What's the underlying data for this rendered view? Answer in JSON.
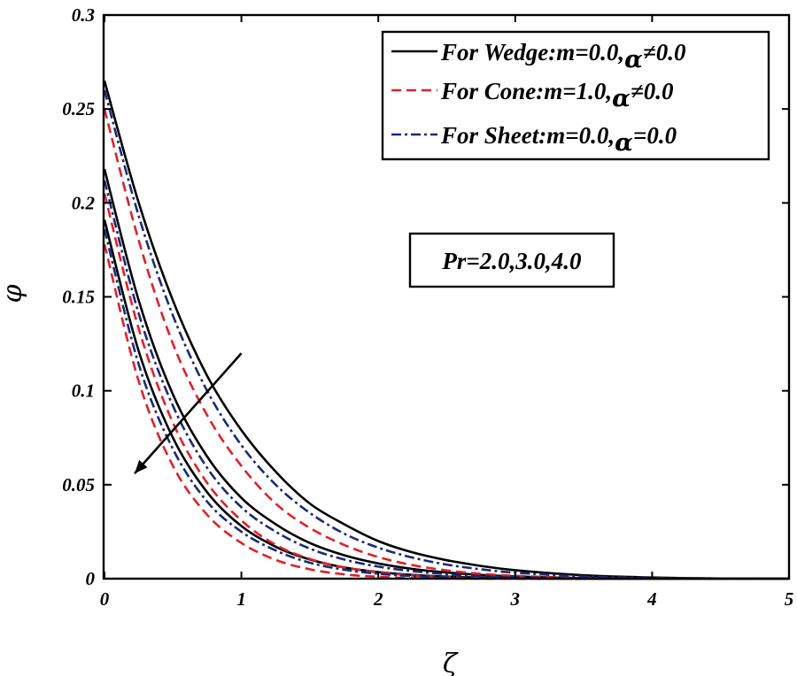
{
  "chart_data": {
    "type": "line",
    "title": "",
    "xlabel": "ζ",
    "ylabel": "φ",
    "xlim": [
      0,
      5
    ],
    "ylim": [
      0,
      0.3
    ],
    "xticks": [
      0,
      1,
      2,
      3,
      4,
      5
    ],
    "xtick_labels": [
      "0",
      "1",
      "2",
      "3",
      "4",
      "5"
    ],
    "yticks": [
      0,
      0.05,
      0.1,
      0.15,
      0.2,
      0.25,
      0.3
    ],
    "ytick_labels": [
      "0",
      "0.05",
      "0.1",
      "0.15",
      "0.2",
      "0.25",
      "0.3"
    ],
    "grid": false,
    "legend_position": "top-right",
    "legend": [
      {
        "key": "wedge",
        "prefix": "For Wedge:m=0.0,",
        "alpha": "α",
        "suffix": "≠0.0",
        "color": "#000000",
        "dash": "solid"
      },
      {
        "key": "cone",
        "prefix": "For Cone:m=1.0,",
        "alpha": "α",
        "suffix": "≠0.0",
        "color": "#e0202a",
        "dash": "dashed"
      },
      {
        "key": "sheet",
        "prefix": "For Sheet:m=0.0,",
        "alpha": "α",
        "suffix": "=0.0",
        "color": "#1a2a78",
        "dash": "dashdot"
      }
    ],
    "annotation": "Pr=2.0,3.0,4.0",
    "arrow": {
      "from": [
        1.0,
        0.12
      ],
      "to": [
        0.22,
        0.056
      ]
    },
    "x": [
      0,
      0.25,
      0.5,
      0.75,
      1,
      1.25,
      1.5,
      1.75,
      2,
      2.25,
      2.5,
      2.75,
      3,
      3.5,
      4,
      4.5,
      5
    ],
    "series": [
      {
        "name": "Wedge, Pr=2.0",
        "legend": "wedge",
        "values": [
          0.265,
          0.2,
          0.148,
          0.108,
          0.079,
          0.057,
          0.04,
          0.029,
          0.02,
          0.014,
          0.0098,
          0.0068,
          0.0045,
          0.0018,
          0.0006,
          0.0001,
          0
        ]
      },
      {
        "name": "Wedge, Pr=3.0",
        "legend": "wedge",
        "values": [
          0.218,
          0.148,
          0.098,
          0.065,
          0.043,
          0.029,
          0.019,
          0.0125,
          0.0081,
          0.0052,
          0.0033,
          0.002,
          0.0012,
          0.0003,
          0.0001,
          0,
          0
        ]
      },
      {
        "name": "Wedge, Pr=4.0",
        "legend": "wedge",
        "values": [
          0.191,
          0.121,
          0.075,
          0.046,
          0.028,
          0.017,
          0.0102,
          0.006,
          0.0035,
          0.002,
          0.0011,
          0.0006,
          0.0003,
          0,
          0,
          0,
          0
        ]
      },
      {
        "name": "Cone, Pr=2.0",
        "legend": "cone",
        "values": [
          0.25,
          0.18,
          0.125,
          0.087,
          0.06,
          0.04,
          0.027,
          0.018,
          0.0115,
          0.0072,
          0.0044,
          0.0026,
          0.0015,
          0.0004,
          0.0001,
          0,
          0
        ]
      },
      {
        "name": "Cone, Pr=3.0",
        "legend": "cone",
        "values": [
          0.205,
          0.133,
          0.083,
          0.051,
          0.031,
          0.018,
          0.0105,
          0.006,
          0.0033,
          0.0017,
          0.0008,
          0.0003,
          0.0001,
          0,
          0,
          0,
          0
        ]
      },
      {
        "name": "Cone, Pr=4.0",
        "legend": "cone",
        "values": [
          0.178,
          0.105,
          0.06,
          0.034,
          0.019,
          0.01,
          0.005,
          0.0023,
          0.001,
          0.0003,
          0.0001,
          0,
          0,
          0,
          0,
          0,
          0
        ]
      },
      {
        "name": "Sheet, Pr=2.0",
        "legend": "sheet",
        "values": [
          0.26,
          0.193,
          0.14,
          0.1,
          0.071,
          0.05,
          0.035,
          0.024,
          0.0165,
          0.0112,
          0.0075,
          0.005,
          0.0032,
          0.0012,
          0.0004,
          0.0001,
          0
        ]
      },
      {
        "name": "Sheet, Pr=3.0",
        "legend": "sheet",
        "values": [
          0.212,
          0.141,
          0.092,
          0.059,
          0.038,
          0.025,
          0.016,
          0.0102,
          0.0064,
          0.004,
          0.0024,
          0.0014,
          0.0008,
          0.0002,
          0,
          0,
          0
        ]
      },
      {
        "name": "Sheet, Pr=4.0",
        "legend": "sheet",
        "values": [
          0.186,
          0.114,
          0.069,
          0.041,
          0.025,
          0.015,
          0.0085,
          0.0048,
          0.0026,
          0.0014,
          0.0007,
          0.0003,
          0.0001,
          0,
          0,
          0,
          0
        ]
      }
    ]
  }
}
